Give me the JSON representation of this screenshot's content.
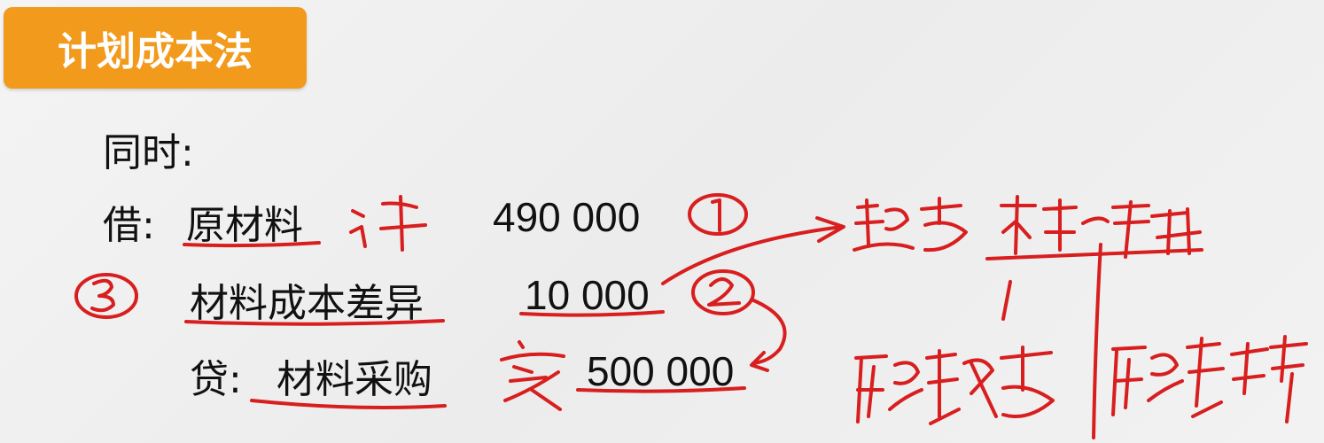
{
  "title": "计划成本法",
  "entry": {
    "intro": "同时:",
    "debit_prefix": "借:",
    "debit_account_1": "原材料",
    "debit_amount_1": "490 000",
    "debit_account_2": "材料成本差异",
    "debit_amount_2": "10 000",
    "credit_prefix": "贷:",
    "credit_account": "材料采购",
    "credit_amount": "500 000"
  },
  "handwriting_color": "#d81e1e",
  "badge_color": "#f29a1c"
}
